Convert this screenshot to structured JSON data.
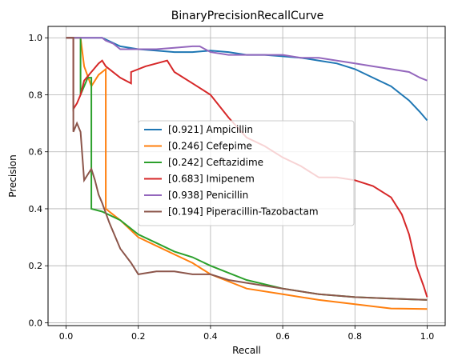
{
  "chart_data": {
    "type": "line",
    "title": "BinaryPrecisionRecallCurve",
    "xlabel": "Recall",
    "ylabel": "Precision",
    "xlim": [
      -0.05,
      1.05
    ],
    "ylim": [
      -0.01,
      1.04
    ],
    "xticks": [
      0.0,
      0.2,
      0.4,
      0.6,
      0.8,
      1.0
    ],
    "yticks": [
      0.0,
      0.2,
      0.4,
      0.6,
      0.8,
      1.0
    ],
    "xtick_labels": [
      "0.0",
      "0.2",
      "0.4",
      "0.6",
      "0.8",
      "1.0"
    ],
    "ytick_labels": [
      "0.0",
      "0.2",
      "0.4",
      "0.6",
      "0.8",
      "1.0"
    ],
    "grid": true,
    "legend_position": "center",
    "series": [
      {
        "name": "[0.921] Ampicillin",
        "color": "#1f77b4",
        "points": [
          [
            0.0,
            1.0
          ],
          [
            0.1,
            1.0
          ],
          [
            0.15,
            0.97
          ],
          [
            0.2,
            0.96
          ],
          [
            0.25,
            0.955
          ],
          [
            0.3,
            0.95
          ],
          [
            0.35,
            0.95
          ],
          [
            0.4,
            0.955
          ],
          [
            0.45,
            0.95
          ],
          [
            0.5,
            0.94
          ],
          [
            0.55,
            0.94
          ],
          [
            0.6,
            0.935
          ],
          [
            0.65,
            0.93
          ],
          [
            0.7,
            0.92
          ],
          [
            0.75,
            0.91
          ],
          [
            0.8,
            0.89
          ],
          [
            0.85,
            0.86
          ],
          [
            0.9,
            0.83
          ],
          [
            0.95,
            0.78
          ],
          [
            0.98,
            0.74
          ],
          [
            1.0,
            0.71
          ]
        ]
      },
      {
        "name": "[0.246] Cefepime",
        "color": "#ff7f0e",
        "points": [
          [
            0.0,
            1.0
          ],
          [
            0.02,
            1.0
          ],
          [
            0.04,
            1.0
          ],
          [
            0.05,
            0.9
          ],
          [
            0.07,
            0.83
          ],
          [
            0.09,
            0.87
          ],
          [
            0.11,
            0.89
          ],
          [
            0.11,
            0.4
          ],
          [
            0.15,
            0.36
          ],
          [
            0.2,
            0.3
          ],
          [
            0.25,
            0.27
          ],
          [
            0.3,
            0.24
          ],
          [
            0.35,
            0.21
          ],
          [
            0.4,
            0.17
          ],
          [
            0.5,
            0.12
          ],
          [
            0.6,
            0.1
          ],
          [
            0.7,
            0.08
          ],
          [
            0.8,
            0.065
          ],
          [
            0.9,
            0.05
          ],
          [
            1.0,
            0.048
          ]
        ]
      },
      {
        "name": "[0.242] Ceftazidime",
        "color": "#2ca02c",
        "points": [
          [
            0.0,
            1.0
          ],
          [
            0.04,
            1.0
          ],
          [
            0.04,
            0.8
          ],
          [
            0.06,
            0.86
          ],
          [
            0.07,
            0.86
          ],
          [
            0.07,
            0.4
          ],
          [
            0.1,
            0.39
          ],
          [
            0.15,
            0.36
          ],
          [
            0.2,
            0.31
          ],
          [
            0.25,
            0.28
          ],
          [
            0.3,
            0.25
          ],
          [
            0.35,
            0.23
          ],
          [
            0.4,
            0.2
          ],
          [
            0.5,
            0.15
          ],
          [
            0.6,
            0.12
          ],
          [
            0.7,
            0.1
          ],
          [
            0.8,
            0.09
          ],
          [
            0.9,
            0.085
          ],
          [
            1.0,
            0.08
          ]
        ]
      },
      {
        "name": "[0.683] Imipenem",
        "color": "#d62728",
        "points": [
          [
            0.0,
            1.0
          ],
          [
            0.02,
            1.0
          ],
          [
            0.02,
            0.75
          ],
          [
            0.03,
            0.77
          ],
          [
            0.04,
            0.8
          ],
          [
            0.05,
            0.85
          ],
          [
            0.07,
            0.88
          ],
          [
            0.09,
            0.91
          ],
          [
            0.1,
            0.92
          ],
          [
            0.11,
            0.9
          ],
          [
            0.15,
            0.86
          ],
          [
            0.18,
            0.84
          ],
          [
            0.18,
            0.88
          ],
          [
            0.22,
            0.9
          ],
          [
            0.25,
            0.91
          ],
          [
            0.28,
            0.92
          ],
          [
            0.3,
            0.88
          ],
          [
            0.35,
            0.84
          ],
          [
            0.4,
            0.8
          ],
          [
            0.45,
            0.72
          ],
          [
            0.5,
            0.65
          ],
          [
            0.55,
            0.62
          ],
          [
            0.6,
            0.58
          ],
          [
            0.65,
            0.55
          ],
          [
            0.7,
            0.51
          ],
          [
            0.75,
            0.51
          ],
          [
            0.8,
            0.5
          ],
          [
            0.85,
            0.48
          ],
          [
            0.9,
            0.44
          ],
          [
            0.93,
            0.38
          ],
          [
            0.95,
            0.31
          ],
          [
            0.97,
            0.2
          ],
          [
            0.99,
            0.13
          ],
          [
            1.0,
            0.09
          ]
        ]
      },
      {
        "name": "[0.938] Penicillin",
        "color": "#9467bd",
        "points": [
          [
            0.0,
            1.0
          ],
          [
            0.1,
            1.0
          ],
          [
            0.11,
            0.99
          ],
          [
            0.13,
            0.98
          ],
          [
            0.15,
            0.96
          ],
          [
            0.2,
            0.96
          ],
          [
            0.25,
            0.96
          ],
          [
            0.3,
            0.965
          ],
          [
            0.35,
            0.97
          ],
          [
            0.37,
            0.97
          ],
          [
            0.4,
            0.95
          ],
          [
            0.45,
            0.94
          ],
          [
            0.5,
            0.94
          ],
          [
            0.55,
            0.94
          ],
          [
            0.6,
            0.94
          ],
          [
            0.65,
            0.93
          ],
          [
            0.7,
            0.93
          ],
          [
            0.75,
            0.92
          ],
          [
            0.8,
            0.91
          ],
          [
            0.85,
            0.9
          ],
          [
            0.9,
            0.89
          ],
          [
            0.95,
            0.88
          ],
          [
            0.98,
            0.86
          ],
          [
            1.0,
            0.85
          ]
        ]
      },
      {
        "name": "[0.194] Piperacillin-Tazobactam",
        "color": "#8c564b",
        "points": [
          [
            0.0,
            1.0
          ],
          [
            0.02,
            1.0
          ],
          [
            0.02,
            0.67
          ],
          [
            0.03,
            0.7
          ],
          [
            0.04,
            0.67
          ],
          [
            0.05,
            0.5
          ],
          [
            0.07,
            0.54
          ],
          [
            0.08,
            0.5
          ],
          [
            0.09,
            0.45
          ],
          [
            0.1,
            0.42
          ],
          [
            0.12,
            0.35
          ],
          [
            0.15,
            0.26
          ],
          [
            0.18,
            0.21
          ],
          [
            0.2,
            0.17
          ],
          [
            0.25,
            0.18
          ],
          [
            0.3,
            0.18
          ],
          [
            0.35,
            0.17
          ],
          [
            0.4,
            0.17
          ],
          [
            0.45,
            0.15
          ],
          [
            0.5,
            0.14
          ],
          [
            0.6,
            0.12
          ],
          [
            0.7,
            0.1
          ],
          [
            0.8,
            0.09
          ],
          [
            0.9,
            0.085
          ],
          [
            1.0,
            0.08
          ]
        ]
      }
    ]
  }
}
